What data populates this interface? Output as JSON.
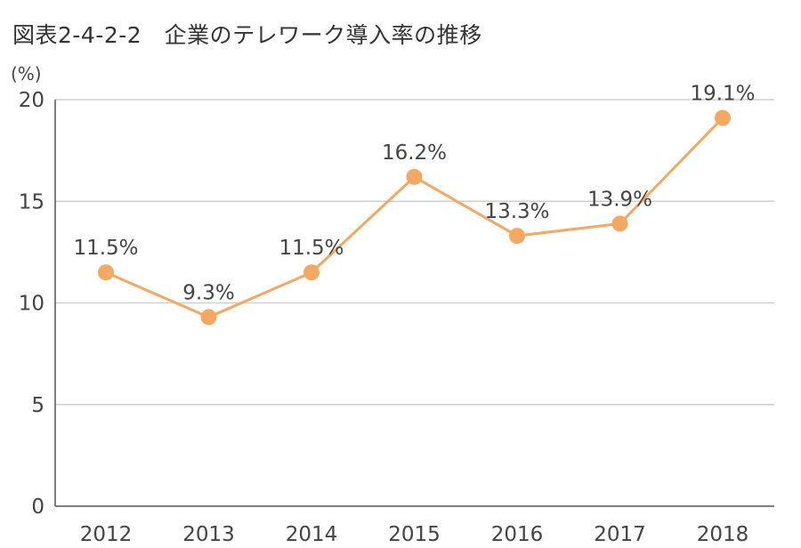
{
  "title": "図表2-4-2-2　企業のテレワーク導入率の推移",
  "chart_data": {
    "type": "line",
    "title": "図表2-4-2-2　企業のテレワーク導入率の推移",
    "xlabel": "",
    "ylabel": "(%)",
    "categories": [
      "2012",
      "2013",
      "2014",
      "2015",
      "2016",
      "2017",
      "2018"
    ],
    "series": [
      {
        "values": [
          11.5,
          9.3,
          11.5,
          16.2,
          13.3,
          13.9,
          19.1
        ],
        "labels": [
          "11.5%",
          "9.3%",
          "11.5%",
          "16.2%",
          "13.3%",
          "13.9%",
          "19.1%"
        ],
        "color": "#f5a862"
      }
    ],
    "ylim": [
      0,
      20
    ],
    "yticks": [
      "0",
      "5",
      "10",
      "15",
      "20"
    ],
    "grid": true,
    "legend": "none"
  },
  "colors": {
    "line": "#f5a862",
    "grid": "#cfcfcf",
    "axis": "#555555"
  }
}
